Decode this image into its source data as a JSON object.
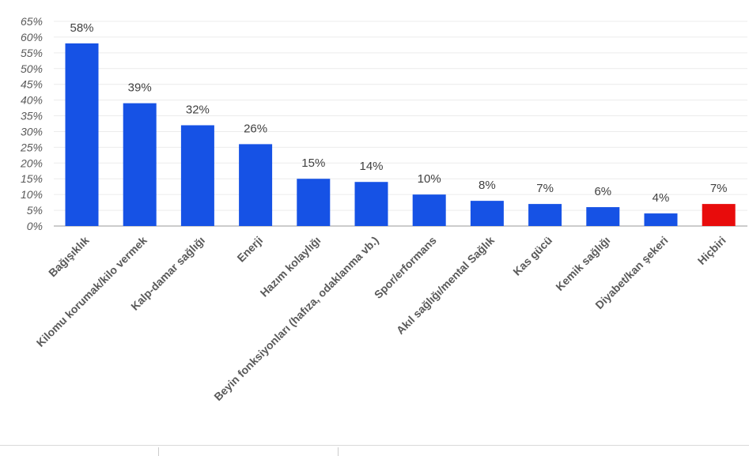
{
  "chart_data": {
    "type": "bar",
    "categories": [
      "Bağışıklık",
      "Kilomu korumak/kilo vermek",
      "Kalp-damar sağlığı",
      "Enerji",
      "Hazım kolaylığı",
      "Beyin fonksiyonları (hafıza, odaklanma vb.)",
      "Spor/erformans",
      "Akıl sağlığı/mental Sağlık",
      "Kas gücü",
      "Kemik sağlığı",
      "Diyabet/kan şekeri",
      "Hiçbiri"
    ],
    "values": [
      58,
      39,
      32,
      26,
      15,
      14,
      10,
      8,
      7,
      6,
      4,
      7
    ],
    "value_labels": [
      "58%",
      "39%",
      "32%",
      "26%",
      "15%",
      "14%",
      "10%",
      "8%",
      "7%",
      "6%",
      "4%",
      "7%"
    ],
    "y_ticks": [
      "0%",
      "5%",
      "10%",
      "15%",
      "20%",
      "25%",
      "30%",
      "35%",
      "40%",
      "45%",
      "50%",
      "55%",
      "60%",
      "65%"
    ],
    "ylim": [
      0,
      65
    ],
    "grid": true,
    "title": "",
    "xlabel": "",
    "ylabel": "",
    "colors": {
      "default": "#1652e5",
      "highlight": "#e80c0c",
      "grid": "#ececec",
      "axis": "#9a9a9a"
    },
    "highlight_index": 11
  }
}
